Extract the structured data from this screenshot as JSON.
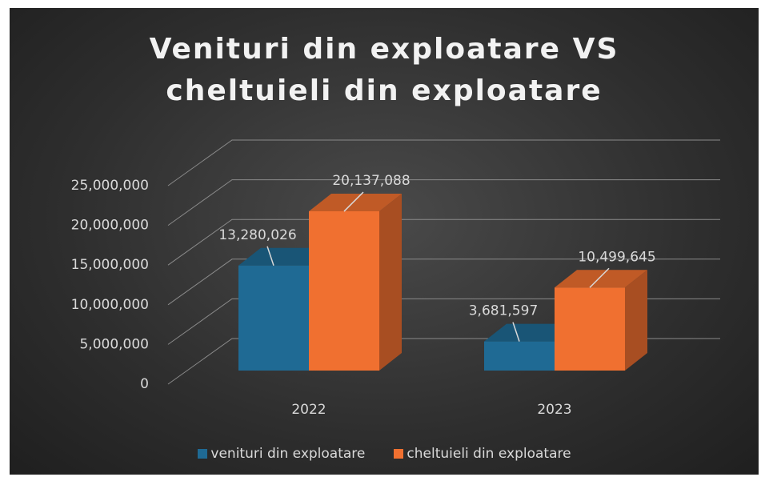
{
  "chart_data": {
    "type": "bar3d",
    "title": "Venituri din exploatare VS cheltuieli din exploatare",
    "categories": [
      "2022",
      "2023"
    ],
    "series": [
      {
        "name": "venituri din exploatare",
        "color": "#1f6a94",
        "values": [
          13280026,
          3681597
        ],
        "value_labels": [
          "13,280,026",
          "3,681,597"
        ]
      },
      {
        "name": "cheltuieli din exploatare",
        "color": "#f07030",
        "values": [
          20137088,
          10499645
        ],
        "value_labels": [
          "20,137,088",
          "10,499,645"
        ]
      }
    ],
    "ylim": [
      0,
      25000000
    ],
    "yticks": [
      0,
      {
        "value": 5000000,
        "label": "5,000,000"
      },
      {
        "value": 10000000,
        "label": "10,000,000"
      },
      {
        "value": 15000000,
        "label": "15,000,000"
      },
      {
        "value": 20000000,
        "label": "20,000,000"
      },
      {
        "value": 25000000,
        "label": "25,000,000"
      }
    ],
    "grid": true,
    "legend": "bottom"
  }
}
